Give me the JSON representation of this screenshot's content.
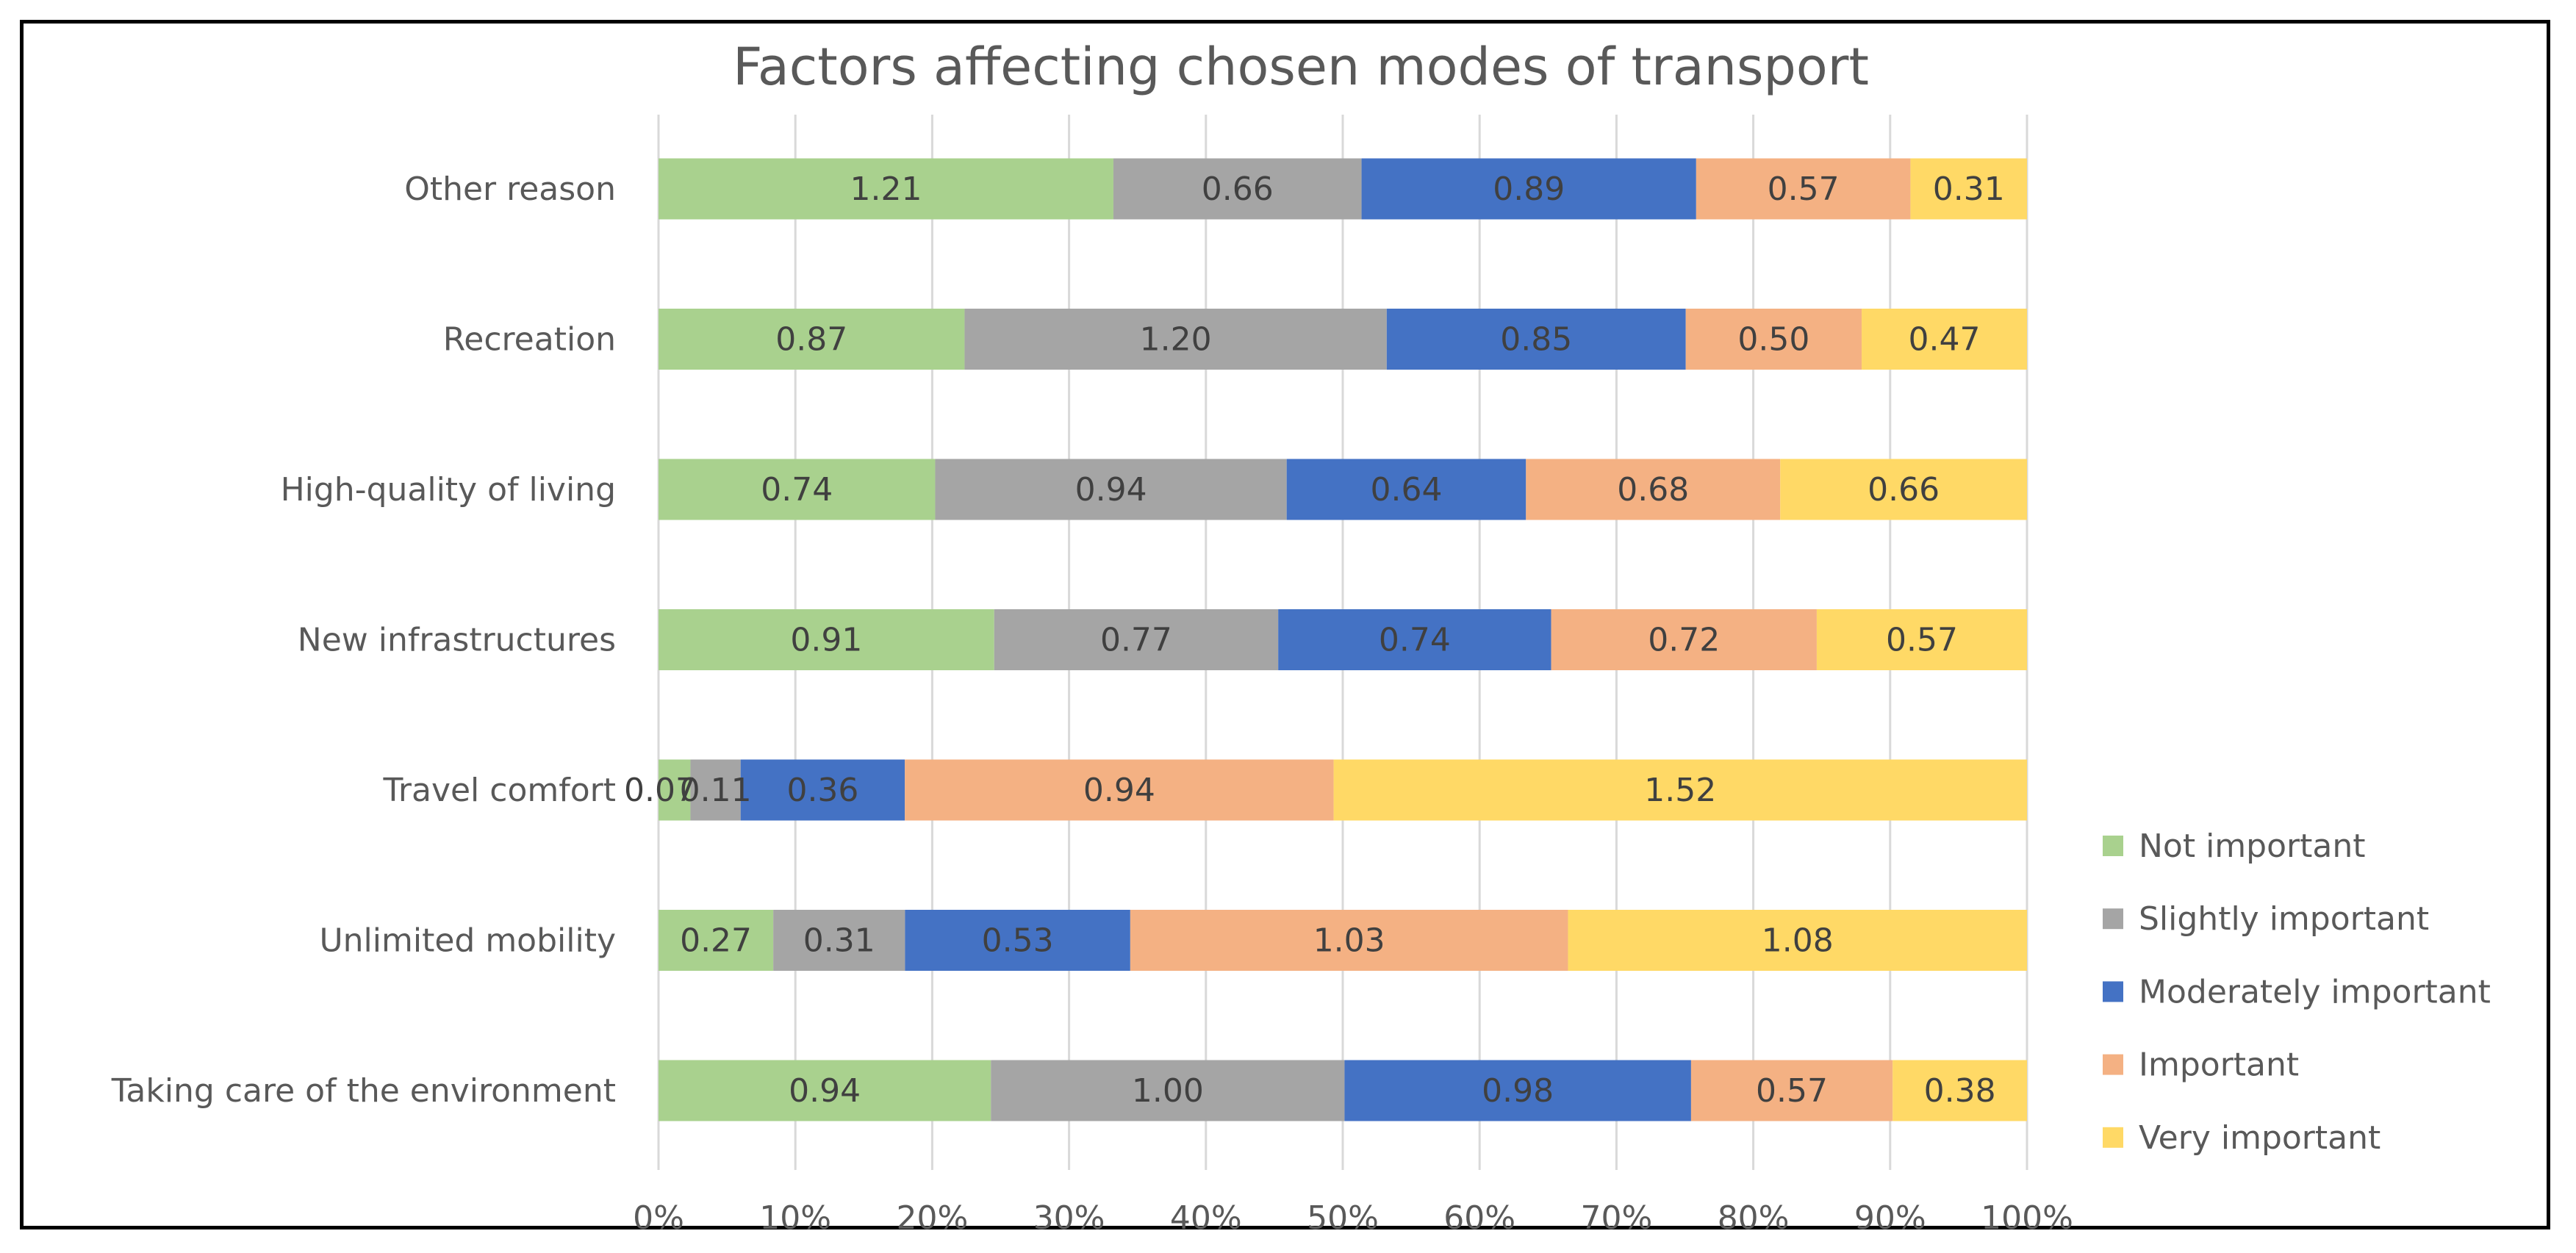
{
  "chart_data": {
    "type": "bar",
    "orientation": "horizontal",
    "stacking": "percent",
    "title": "Factors affecting chosen modes of transport",
    "xlabel": "",
    "ylabel": "",
    "xlim": [
      0,
      100
    ],
    "x_ticks": [
      "0%",
      "10%",
      "20%",
      "30%",
      "40%",
      "50%",
      "60%",
      "70%",
      "80%",
      "90%",
      "100%"
    ],
    "grid": "vertical",
    "legend_position": "right",
    "categories": [
      "Other reason",
      "Recreation",
      "High-quality of living",
      "New infrastructures",
      "Travel comfort",
      "Unlimited mobility",
      "Taking care of the environment"
    ],
    "series": [
      {
        "name": "Not important",
        "color": "#A9D18E",
        "values": [
          1.21,
          0.87,
          0.74,
          0.91,
          0.07,
          0.27,
          0.94
        ]
      },
      {
        "name": "Slightly important",
        "color": "#A5A5A5",
        "values": [
          0.66,
          1.2,
          0.94,
          0.77,
          0.11,
          0.31,
          1.0
        ]
      },
      {
        "name": "Moderately important",
        "color": "#4472C4",
        "values": [
          0.89,
          0.85,
          0.64,
          0.74,
          0.36,
          0.53,
          0.98
        ]
      },
      {
        "name": "Important",
        "color": "#F4B183",
        "values": [
          0.57,
          0.5,
          0.68,
          0.72,
          0.94,
          1.03,
          0.57
        ]
      },
      {
        "name": "Very important",
        "color": "#FFD966",
        "values": [
          0.31,
          0.47,
          0.66,
          0.57,
          1.52,
          1.08,
          0.38
        ]
      }
    ],
    "data_labels": {
      "Other reason": [
        "1.21",
        "0.66",
        "0.89",
        "0.57",
        "0.31"
      ],
      "Recreation": [
        "0.87",
        "1.20",
        "0.85",
        "0.50",
        "0.47"
      ],
      "High-quality of living": [
        "0.74",
        "0.94",
        "0.64",
        "0.68",
        "0.66"
      ],
      "New infrastructures": [
        "0.91",
        "0.77",
        "0.74",
        "0.72",
        "0.57"
      ],
      "Travel comfort": [
        "0.07",
        "0.11",
        "0.36",
        "0.94",
        "1.52"
      ],
      "Unlimited mobility": [
        "0.27",
        "0.31",
        "0.53",
        "1.03",
        "1.08"
      ],
      "Taking care of the environment": [
        "0.94",
        "1.00",
        "0.98",
        "0.57",
        "0.38"
      ]
    }
  }
}
